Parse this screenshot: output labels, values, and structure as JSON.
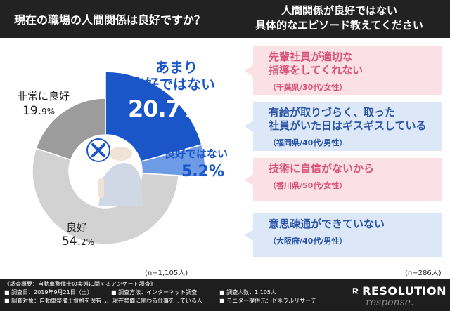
{
  "header": {
    "left_title": "現在の職場の人間関係は良好ですか？",
    "right_title_line1": "人間関係が良好ではない",
    "right_title_line2": "具体的なエピソード教えてください"
  },
  "chart_data": {
    "type": "pie",
    "slices": [
      {
        "label_line1": "あまり",
        "label_line2": "良好ではない",
        "value": 20.7,
        "value_text": "20.7%",
        "color": "#1a56c8"
      },
      {
        "label": "良好ではない",
        "value": 5.2,
        "value_text": "5.2%",
        "color": "#6e9be6"
      },
      {
        "label": "良好",
        "value": 54.2,
        "value_text_main": "54.",
        "value_text_small": "2%",
        "color": "#d2d2d2"
      },
      {
        "label": "非常に良好",
        "value": 19.9,
        "value_text_main": "19.",
        "value_text_small": "9%",
        "color": "#9c9c9c"
      }
    ],
    "center_icon": "x-mark-icon",
    "n_note": "(n=1,105人)"
  },
  "episodes": {
    "n_note": "(n=286人)",
    "items": [
      {
        "line1": "先輩社員が適切な",
        "line2": "指導をしてくれない",
        "sub": "（千葉県/30代/女性）",
        "bg": "#fbe0e5",
        "fg": "#d9527a"
      },
      {
        "line1": "有給が取りづらく、取った",
        "line2": "社員がいた日はギスギスしている",
        "sub": "（福岡県/40代/男性）",
        "bg": "#dce8f8",
        "fg": "#2a55a6"
      },
      {
        "line1": "技術に自信がないから",
        "line2": "",
        "sub": "（香川県/50代/女性）",
        "bg": "#fbe0e5",
        "fg": "#d9527a"
      },
      {
        "line1": "意思疎通ができていない",
        "line2": "",
        "sub": "（大阪府/40代/男性）",
        "bg": "#dce8f8",
        "fg": "#2a55a6"
      }
    ]
  },
  "footer": {
    "overview": "《調査概要：自動車整備士の実態に関するアンケート調査》",
    "date": "■ 調査日：2019年9月21日（土）",
    "method": "■ 調査方法：インターネット調査",
    "count": "■ 調査人数：1,105人",
    "target": "■ 調査対象：自動車整備士資格を保有し、現在整備に関わる仕事をしている人",
    "monitor": "■ モニター提供元：ゼネラルリサーチ",
    "logo": "RESOLUTION",
    "watermark": "response."
  }
}
